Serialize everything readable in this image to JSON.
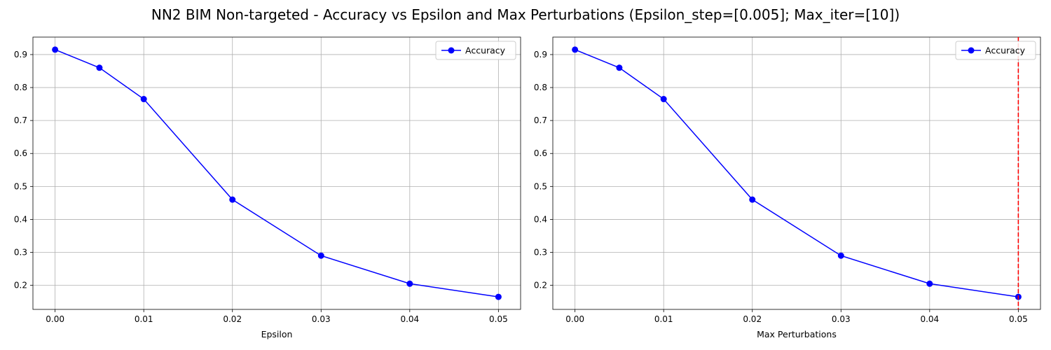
{
  "figure": {
    "title": "NN2 BIM Non-targeted - Accuracy vs Epsilon and Max Perturbations (Epsilon_step=[0.005]; Max_iter=[10])"
  },
  "colors": {
    "series": "#0000ff",
    "marker": "#0000ff",
    "grid": "#b0b0b0",
    "vline": "#ff0000",
    "axes": "#000000"
  },
  "chart_data": [
    {
      "type": "line",
      "title": "",
      "xlabel": "Epsilon",
      "ylabel": "",
      "x": [
        0.0,
        0.005,
        0.01,
        0.02,
        0.03,
        0.04,
        0.05
      ],
      "series": [
        {
          "name": "Accuracy",
          "values": [
            0.915,
            0.86,
            0.765,
            0.46,
            0.29,
            0.205,
            0.165
          ]
        }
      ],
      "xlim": [
        -0.0025,
        0.0525
      ],
      "ylim": [
        0.127,
        0.953
      ],
      "xticks": [
        0.0,
        0.01,
        0.02,
        0.03,
        0.04,
        0.05
      ],
      "xtick_labels": [
        "0.00",
        "0.01",
        "0.02",
        "0.03",
        "0.04",
        "0.05"
      ],
      "yticks": [
        0.2,
        0.3,
        0.4,
        0.5,
        0.6,
        0.7,
        0.8,
        0.9
      ],
      "ytick_labels": [
        "0.2",
        "0.3",
        "0.4",
        "0.5",
        "0.6",
        "0.7",
        "0.8",
        "0.9"
      ],
      "grid": true,
      "legend": "top-right",
      "vlines": []
    },
    {
      "type": "line",
      "title": "",
      "xlabel": "Max Perturbations",
      "ylabel": "",
      "x": [
        0.0,
        0.005,
        0.01,
        0.02,
        0.03,
        0.04,
        0.05
      ],
      "series": [
        {
          "name": "Accuracy",
          "values": [
            0.915,
            0.86,
            0.765,
            0.46,
            0.29,
            0.205,
            0.165
          ]
        }
      ],
      "xlim": [
        -0.0025,
        0.0525
      ],
      "ylim": [
        0.127,
        0.953
      ],
      "xticks": [
        0.0,
        0.01,
        0.02,
        0.03,
        0.04,
        0.05
      ],
      "xtick_labels": [
        "0.00",
        "0.01",
        "0.02",
        "0.03",
        "0.04",
        "0.05"
      ],
      "yticks": [
        0.2,
        0.3,
        0.4,
        0.5,
        0.6,
        0.7,
        0.8,
        0.9
      ],
      "ytick_labels": [
        "0.2",
        "0.3",
        "0.4",
        "0.5",
        "0.6",
        "0.7",
        "0.8",
        "0.9"
      ],
      "grid": true,
      "legend": "top-right",
      "vlines": [
        {
          "x": 0.05,
          "style": "dashed"
        }
      ]
    }
  ]
}
